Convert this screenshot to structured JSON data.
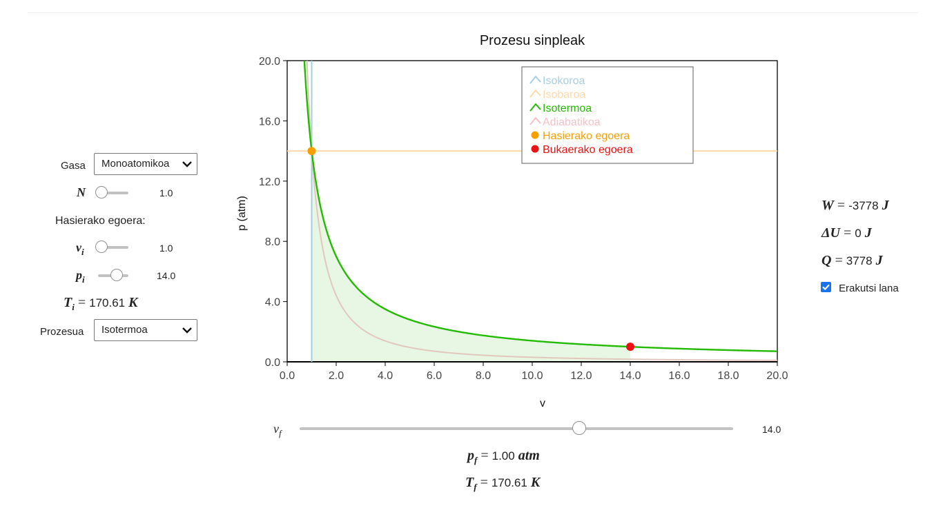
{
  "controls": {
    "gas_label": "Gasa",
    "gas_value": "Monoatomikoa",
    "n_label": "N",
    "n_value": "1.0",
    "n_fraction": 0.0,
    "initial_state_label": "Hasierako egoera:",
    "vi_label": "v",
    "vi_sub": "i",
    "vi_value": "1.0",
    "vi_fraction": 0.0,
    "pi_label": "p",
    "pi_sub": "i",
    "pi_value": "14.0",
    "pi_fraction": 0.7,
    "ti_label": "T",
    "ti_sub": "i",
    "ti_eq": "=",
    "ti_value": "170.61",
    "ti_unit": "K",
    "process_label": "Prozesua",
    "process_value": "Isotermoa"
  },
  "results": {
    "w_label": "W",
    "w_eq": "=",
    "w_value": "-3778",
    "w_unit": "J",
    "du_label": "ΔU",
    "du_eq": "=",
    "du_value": "0",
    "du_unit": "J",
    "q_label": "Q",
    "q_eq": "=",
    "q_value": "3778",
    "q_unit": "J",
    "show_work_label": "Erakutsi lana",
    "show_work_checked": true
  },
  "final": {
    "vf_label": "v",
    "vf_sub": "f",
    "vf_value": "14.0",
    "vf_fraction": 0.65,
    "pf_label": "p",
    "pf_sub": "f",
    "pf_eq": "=",
    "pf_value": "1.00",
    "pf_unit": "atm",
    "tf_label": "T",
    "tf_sub": "f",
    "tf_eq": "=",
    "tf_value": "170.61",
    "tf_unit": "K"
  },
  "colors": {
    "isochoric": "#a6cee3",
    "isobaric": "#fdd9a8",
    "isothermal": "#22bb00",
    "adiabatic": "#f5c0c8",
    "initial": "#f5a000",
    "final": "#ee1111",
    "fill": "#e8f6e4",
    "accent": "#1a73e8"
  },
  "chart_data": {
    "type": "line",
    "title": "Prozesu sinpleak",
    "xlabel": "v",
    "ylabel": "p (atm)",
    "xlim": [
      0,
      20
    ],
    "ylim": [
      0,
      20
    ],
    "xticks": [
      "0.0",
      "2.0",
      "4.0",
      "6.0",
      "8.0",
      "10.0",
      "12.0",
      "14.0",
      "16.0",
      "18.0",
      "20.0"
    ],
    "yticks": [
      "0.0",
      "4.0",
      "8.0",
      "12.0",
      "16.0",
      "20.0"
    ],
    "legend_position": "top-right",
    "series": [
      {
        "name": "Isokoroa",
        "kind": "vertical",
        "x": 1.0
      },
      {
        "name": "Isobaroa",
        "kind": "horizontal",
        "y": 14.0
      },
      {
        "name": "Isotermoa",
        "kind": "curve",
        "pv": 14.0,
        "exponent": 1.0
      },
      {
        "name": "Adiabatikoa",
        "kind": "curve",
        "pv": 14.0,
        "exponent": 1.667
      }
    ],
    "points": [
      {
        "name": "Hasierako egoera",
        "x": 1.0,
        "y": 14.0
      },
      {
        "name": "Bukaerako egoera",
        "x": 14.0,
        "y": 1.0
      }
    ],
    "shaded_work": {
      "x_from": 1.0,
      "x_to": 14.0,
      "series": "Isotermoa"
    }
  }
}
